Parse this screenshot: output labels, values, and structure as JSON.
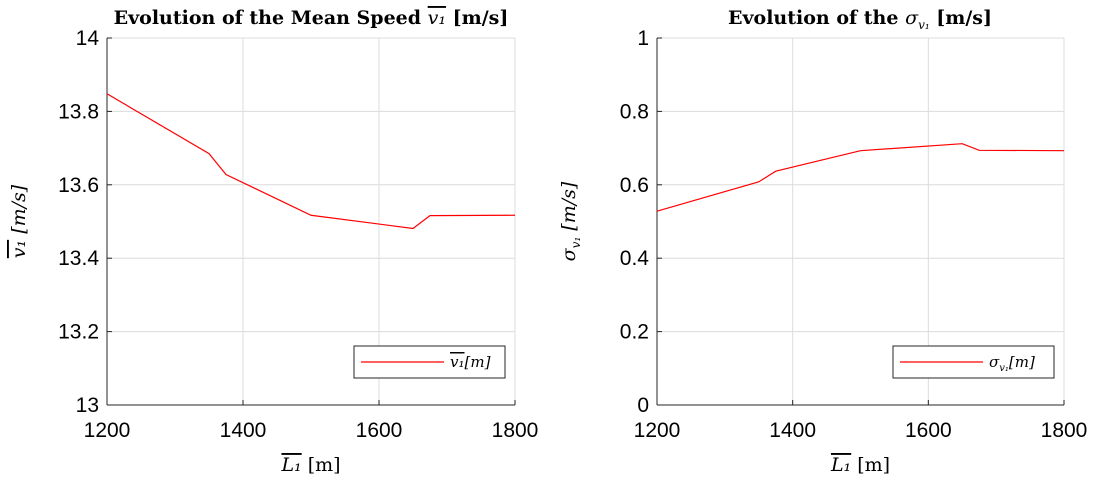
{
  "chart_data": [
    {
      "type": "line",
      "title": "Evolution of the Mean Speed v̄₁ [m/s]",
      "title_text": "Evolution of the Mean Speed",
      "title_symbol": "v₁",
      "title_unit": "[m/s]",
      "xlabel": "L̄₁ [m]",
      "xlabel_symbol": "L₁",
      "xlabel_unit": "[m]",
      "ylabel": "v̄₁ [m/s]",
      "ylabel_symbol": "v₁",
      "ylabel_unit": "[m/s]",
      "xlim": [
        1200,
        1800
      ],
      "ylim": [
        13,
        14
      ],
      "xticks": [
        1200,
        1400,
        1600,
        1800
      ],
      "yticks": [
        13,
        13.2,
        13.4,
        13.6,
        13.8,
        14
      ],
      "ytick_labels": [
        "13",
        "13.2",
        "13.4",
        "13.6",
        "13.8",
        "14"
      ],
      "grid": true,
      "legend_location": "bottom-right",
      "series": [
        {
          "name": "v̄₁[m]",
          "legend_symbol": "v₁",
          "legend_suffix": "[m]",
          "color": "#ff0000",
          "x": [
            1200,
            1350,
            1375,
            1500,
            1650,
            1675,
            1800
          ],
          "y": [
            13.848,
            13.685,
            13.628,
            13.517,
            13.481,
            13.516,
            13.517
          ]
        }
      ]
    },
    {
      "type": "line",
      "title": "Evolution of the σ_v₁ [m/s]",
      "title_text": "Evolution of the",
      "title_symbol": "σ",
      "title_sub": "v₁",
      "title_unit": "[m/s]",
      "xlabel": "L̄₁ [m]",
      "xlabel_symbol": "L₁",
      "xlabel_unit": "[m]",
      "ylabel": "σ_v₁ [m/s]",
      "ylabel_symbol": "σ",
      "ylabel_sub": "v₁",
      "ylabel_unit": "[m/s]",
      "xlim": [
        1200,
        1800
      ],
      "ylim": [
        0,
        1
      ],
      "xticks": [
        1200,
        1400,
        1600,
        1800
      ],
      "yticks": [
        0,
        0.2,
        0.4,
        0.6,
        0.8,
        1
      ],
      "ytick_labels": [
        "0",
        "0.2",
        "0.4",
        "0.6",
        "0.8",
        "1"
      ],
      "grid": true,
      "legend_location": "bottom-right",
      "series": [
        {
          "name": "σ_v₁[m]",
          "legend_symbol": "σ",
          "legend_sub": "v₁",
          "legend_suffix": "[m]",
          "color": "#ff0000",
          "x": [
            1200,
            1350,
            1375,
            1500,
            1650,
            1675,
            1800
          ],
          "y": [
            0.528,
            0.608,
            0.637,
            0.693,
            0.712,
            0.694,
            0.693
          ]
        }
      ]
    }
  ]
}
